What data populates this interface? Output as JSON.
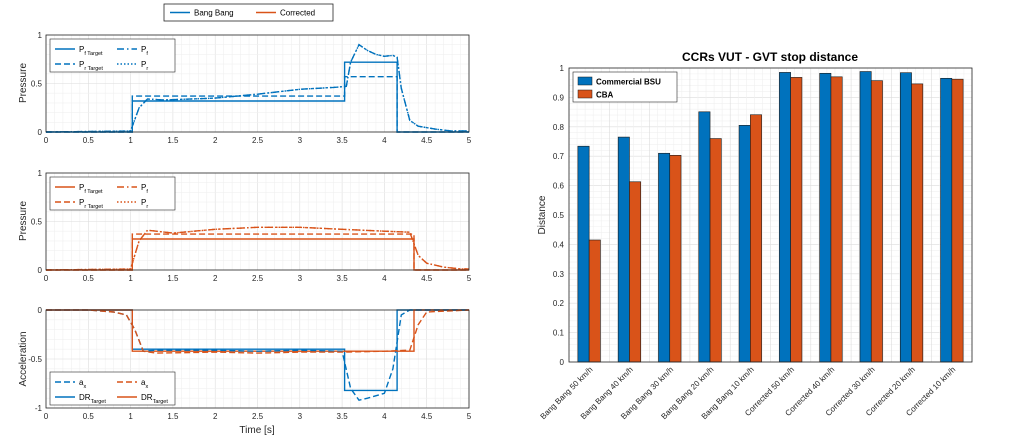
{
  "colors": {
    "blue": "#0072BD",
    "orange": "#D95319",
    "grid": "#e6e6e6",
    "axis": "#262626"
  },
  "top_legend": {
    "entries": [
      {
        "label": "Bang Bang",
        "color": "#0072BD"
      },
      {
        "label": "Corrected",
        "color": "#D95319"
      }
    ]
  },
  "chart_data": [
    {
      "type": "line",
      "ylabel": "Pressure",
      "xlim": [
        0,
        5
      ],
      "ylim": [
        0,
        1
      ],
      "xticks": [
        "0",
        "0.5",
        "1",
        "1.5",
        "2",
        "2.5",
        "3",
        "3.5",
        "4",
        "4.5",
        "5"
      ],
      "yticks": [
        "0",
        "0.5",
        "1"
      ],
      "grid": true,
      "legend": {
        "placement": "top-left",
        "entries": [
          {
            "base": "P",
            "sub": "f Target",
            "style": "solid",
            "color": "#0072BD"
          },
          {
            "base": "P",
            "sub": "f",
            "style": "dashdot",
            "color": "#0072BD"
          },
          {
            "base": "P",
            "sub": "r Target",
            "style": "dashed",
            "color": "#0072BD"
          },
          {
            "base": "P",
            "sub": "r",
            "style": "dotted",
            "color": "#0072BD"
          }
        ]
      },
      "series": [
        {
          "style": "solid",
          "color": "#0072BD",
          "x": [
            0,
            1.02,
            1.02,
            3.53,
            3.53,
            4.15,
            4.15,
            5
          ],
          "y": [
            0,
            0,
            0.32,
            0.32,
            0.72,
            0.72,
            0,
            0
          ]
        },
        {
          "style": "dashed",
          "color": "#0072BD",
          "x": [
            0,
            1.02,
            1.02,
            3.53,
            3.53,
            4.15,
            4.15,
            5
          ],
          "y": [
            0,
            0,
            0.37,
            0.37,
            0.57,
            0.57,
            0,
            0
          ]
        },
        {
          "style": "dashdot",
          "color": "#0072BD",
          "x": [
            0,
            1.0,
            1.1,
            1.2,
            1.4,
            2.0,
            2.5,
            3.0,
            3.4,
            3.55,
            3.6,
            3.7,
            3.8,
            3.9,
            4.0,
            4.1,
            4.15,
            4.2,
            4.3,
            4.4,
            4.6,
            4.8,
            5.0
          ],
          "y": [
            0,
            0.01,
            0.25,
            0.34,
            0.33,
            0.35,
            0.39,
            0.44,
            0.46,
            0.47,
            0.72,
            0.9,
            0.84,
            0.8,
            0.78,
            0.79,
            0.77,
            0.45,
            0.12,
            0.06,
            0.03,
            0.01,
            0.01
          ]
        },
        {
          "style": "dotted",
          "color": "#0072BD",
          "x": [
            0,
            1.0,
            1.1,
            1.2,
            1.4,
            2.0,
            2.5,
            3.0,
            3.4,
            3.55,
            3.6,
            3.7,
            3.8,
            3.9,
            4.0,
            4.1,
            4.15,
            4.2,
            4.3,
            4.4,
            4.6,
            4.8,
            5.0
          ],
          "y": [
            0,
            0.01,
            0.25,
            0.34,
            0.33,
            0.35,
            0.39,
            0.44,
            0.46,
            0.47,
            0.72,
            0.9,
            0.84,
            0.8,
            0.78,
            0.79,
            0.77,
            0.45,
            0.12,
            0.06,
            0.03,
            0.01,
            0.01
          ]
        }
      ]
    },
    {
      "type": "line",
      "ylabel": "Pressure",
      "xlim": [
        0,
        5
      ],
      "ylim": [
        0,
        1
      ],
      "xticks": [
        "0",
        "0.5",
        "1",
        "1.5",
        "2",
        "2.5",
        "3",
        "3.5",
        "4",
        "4.5",
        "5"
      ],
      "yticks": [
        "0",
        "0.5",
        "1"
      ],
      "grid": true,
      "legend": {
        "placement": "top-left",
        "entries": [
          {
            "base": "P",
            "sub": "f Target",
            "style": "solid",
            "color": "#D95319"
          },
          {
            "base": "P",
            "sub": "f",
            "style": "dashdot",
            "color": "#D95319"
          },
          {
            "base": "P",
            "sub": "r Target",
            "style": "dashed",
            "color": "#D95319"
          },
          {
            "base": "P",
            "sub": "r",
            "style": "dotted",
            "color": "#D95319"
          }
        ]
      },
      "series": [
        {
          "style": "solid",
          "color": "#D95319",
          "x": [
            0,
            1.02,
            1.02,
            4.35,
            4.35,
            5
          ],
          "y": [
            0,
            0,
            0.32,
            0.32,
            0,
            0
          ]
        },
        {
          "style": "dashed",
          "color": "#D95319",
          "x": [
            0,
            1.02,
            1.02,
            4.35,
            4.35,
            5
          ],
          "y": [
            0,
            0,
            0.37,
            0.37,
            0,
            0
          ]
        },
        {
          "style": "dashdot",
          "color": "#D95319",
          "x": [
            0,
            1.0,
            1.1,
            1.2,
            1.5,
            2.0,
            2.5,
            3.0,
            3.5,
            4.0,
            4.3,
            4.4,
            4.5,
            4.7,
            4.9,
            5.0
          ],
          "y": [
            0,
            0.01,
            0.3,
            0.41,
            0.38,
            0.42,
            0.44,
            0.44,
            0.42,
            0.4,
            0.39,
            0.15,
            0.07,
            0.03,
            0.01,
            0.01
          ]
        },
        {
          "style": "dotted",
          "color": "#D95319",
          "x": [
            0,
            1.0,
            1.1,
            1.2,
            1.5,
            2.0,
            2.5,
            3.0,
            3.5,
            4.0,
            4.3,
            4.4,
            4.5,
            4.7,
            4.9,
            5.0
          ],
          "y": [
            0,
            0.01,
            0.3,
            0.41,
            0.38,
            0.42,
            0.44,
            0.44,
            0.42,
            0.4,
            0.39,
            0.15,
            0.07,
            0.03,
            0.01,
            0.01
          ]
        }
      ]
    },
    {
      "type": "line",
      "ylabel": "Acceleration",
      "xlabel": "Time [s]",
      "xlim": [
        0,
        5
      ],
      "ylim": [
        -1,
        0
      ],
      "xticks": [
        "0",
        "0.5",
        "1",
        "1.5",
        "2",
        "2.5",
        "3",
        "3.5",
        "4",
        "4.5",
        "5"
      ],
      "yticks": [
        "-1",
        "-0.5",
        "0"
      ],
      "grid": true,
      "legend": {
        "placement": "bottom-left",
        "entries": [
          {
            "base": "a",
            "sub": "x",
            "style": "dashed",
            "color": "#0072BD"
          },
          {
            "base": "a",
            "sub": "x",
            "style": "dashed",
            "color": "#D95319"
          },
          {
            "base": "DR",
            "sub": "Target",
            "style": "solid",
            "color": "#0072BD"
          },
          {
            "base": "DR",
            "sub": "Target",
            "style": "solid",
            "color": "#D95319"
          }
        ]
      },
      "series": [
        {
          "style": "solid",
          "color": "#0072BD",
          "x": [
            0,
            1.02,
            1.02,
            3.53,
            3.53,
            4.15,
            4.15,
            5
          ],
          "y": [
            0,
            0,
            -0.4,
            -0.4,
            -0.82,
            -0.82,
            0,
            0
          ]
        },
        {
          "style": "solid",
          "color": "#D95319",
          "x": [
            0,
            1.02,
            1.02,
            4.35,
            4.35,
            5
          ],
          "y": [
            0,
            0,
            -0.42,
            -0.42,
            0,
            0
          ]
        },
        {
          "style": "dashed",
          "color": "#0072BD",
          "x": [
            0,
            0.5,
            0.8,
            0.95,
            1.05,
            1.15,
            1.3,
            2.0,
            2.5,
            3.0,
            3.5,
            3.6,
            3.7,
            3.8,
            4.0,
            4.1,
            4.2,
            4.3,
            4.5,
            5.0
          ],
          "y": [
            0,
            0,
            -0.02,
            -0.05,
            -0.2,
            -0.42,
            -0.41,
            -0.41,
            -0.42,
            -0.41,
            -0.42,
            -0.8,
            -0.92,
            -0.9,
            -0.85,
            -0.6,
            -0.05,
            0,
            0,
            0
          ]
        },
        {
          "style": "dashed",
          "color": "#D95319",
          "x": [
            0,
            0.5,
            0.8,
            0.95,
            1.05,
            1.15,
            1.3,
            2.0,
            2.5,
            3.0,
            3.5,
            4.0,
            4.3,
            4.4,
            4.5,
            5.0
          ],
          "y": [
            0,
            0,
            -0.02,
            -0.05,
            -0.2,
            -0.42,
            -0.44,
            -0.43,
            -0.44,
            -0.43,
            -0.43,
            -0.42,
            -0.41,
            -0.15,
            -0.02,
            0
          ]
        }
      ]
    },
    {
      "type": "bar",
      "title": "CCRs VUT - GVT stop distance",
      "ylabel": "Distance",
      "ylim": [
        0,
        1
      ],
      "yticks": [
        "0",
        "0.1",
        "0.2",
        "0.3",
        "0.4",
        "0.5",
        "0.6",
        "0.7",
        "0.8",
        "0.9",
        "1"
      ],
      "grid": true,
      "legend_placement": "top-left",
      "categories": [
        "Bang Bang  50 km/h",
        "Bang Bang 40  km/h",
        "Bang Bang 30  km/h",
        "Bang Bang 20  km/h",
        "Bang Bang 10  km/h",
        "Corrected  50  km/h",
        "Corrected 40 km/h",
        "Corrected 30  km/h",
        "Corrected 20 km/h",
        "Corrected 10 km/h"
      ],
      "series": [
        {
          "name": "Commercial BSU",
          "color": "#0072BD",
          "values": [
            0.734,
            0.765,
            0.71,
            0.851,
            0.805,
            0.985,
            0.982,
            0.988,
            0.984,
            0.965
          ]
        },
        {
          "name": "CBA",
          "color": "#D95319",
          "values": [
            0.415,
            0.613,
            0.703,
            0.76,
            0.841,
            0.968,
            0.97,
            0.957,
            0.946,
            0.962
          ]
        }
      ]
    }
  ]
}
